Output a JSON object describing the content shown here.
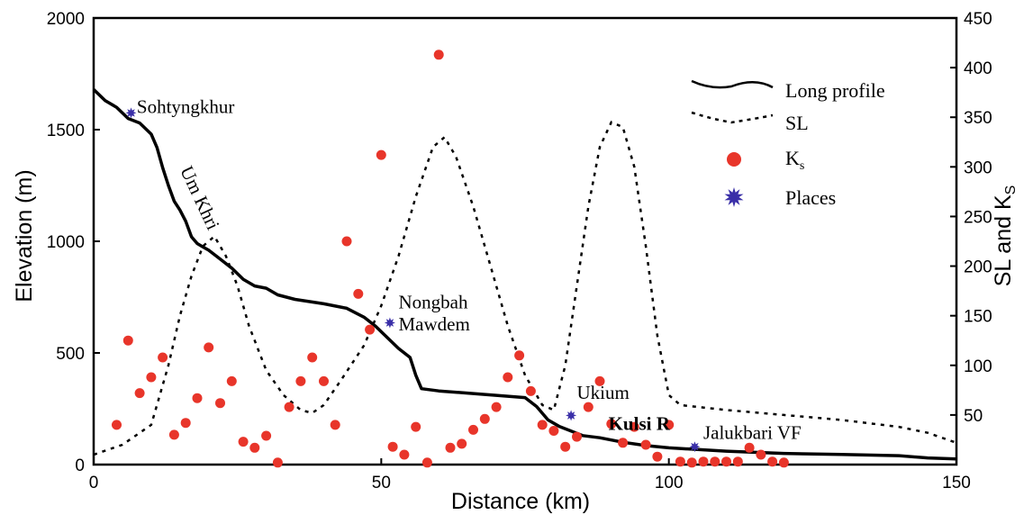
{
  "chart_data": {
    "type": "scatter",
    "xlabel": "Distance (km)",
    "ylabel": "Elevation (m)",
    "y2label": "SL and K",
    "y2label_sub": "S",
    "xlim": [
      0,
      150
    ],
    "ylim": [
      0,
      2000
    ],
    "y2lim": [
      0,
      450
    ],
    "x_ticks": [
      {
        "value": 0,
        "label": "0"
      },
      {
        "value": 50,
        "label": "50"
      },
      {
        "value": 100,
        "label": "100"
      },
      {
        "value": 150,
        "label": "150"
      }
    ],
    "y_ticks": [
      {
        "value": 0,
        "label": "0"
      },
      {
        "value": 500,
        "label": "500"
      },
      {
        "value": 1000,
        "label": "1000"
      },
      {
        "value": 1500,
        "label": "1500"
      },
      {
        "value": 2000,
        "label": "2000"
      }
    ],
    "y2_ticks": [
      {
        "value": 50,
        "label": "50"
      },
      {
        "value": 100,
        "label": "100"
      },
      {
        "value": 150,
        "label": "150"
      },
      {
        "value": 200,
        "label": "200"
      },
      {
        "value": 250,
        "label": "250"
      },
      {
        "value": 300,
        "label": "300"
      },
      {
        "value": 350,
        "label": "350"
      },
      {
        "value": 400,
        "label": "400"
      },
      {
        "value": 450,
        "label": "450"
      }
    ],
    "legend": {
      "placement": "top-right",
      "items": [
        {
          "label": "Long profile",
          "style": "solid-line"
        },
        {
          "label": "SL",
          "style": "dotted-line"
        },
        {
          "label": "K",
          "sub": "s",
          "style": "red-dot"
        },
        {
          "label": "Places",
          "style": "blue-star"
        }
      ]
    },
    "colors": {
      "profile": "#000000",
      "sl": "#000000",
      "ks": "#e8352a",
      "places": "#3a2fa8"
    },
    "series": [
      {
        "name": "Long profile",
        "axis": "left",
        "x": [
          0,
          2,
          4,
          6,
          8,
          10,
          11,
          12,
          13,
          14,
          15,
          16,
          17,
          18,
          19,
          20,
          22,
          24,
          26,
          28,
          30,
          32,
          35,
          40,
          44,
          47,
          49,
          51,
          53,
          55,
          56,
          57,
          60,
          65,
          70,
          75,
          77,
          79,
          81,
          83,
          85,
          88,
          92,
          96,
          100,
          110,
          120,
          130,
          140,
          145,
          150
        ],
        "y": [
          1680,
          1630,
          1600,
          1550,
          1530,
          1480,
          1420,
          1330,
          1250,
          1180,
          1140,
          1090,
          1020,
          990,
          975,
          960,
          920,
          880,
          830,
          800,
          790,
          760,
          740,
          720,
          700,
          660,
          620,
          570,
          520,
          480,
          400,
          340,
          330,
          320,
          310,
          300,
          260,
          200,
          170,
          150,
          130,
          120,
          100,
          85,
          75,
          60,
          50,
          45,
          40,
          30,
          25
        ]
      },
      {
        "name": "SL",
        "axis": "right",
        "x": [
          0,
          5,
          10,
          13,
          15,
          17,
          19,
          21,
          23,
          25,
          27,
          30,
          33,
          36,
          38,
          40,
          43,
          47,
          50,
          53,
          56,
          59,
          61,
          63,
          66,
          69,
          72,
          75,
          78,
          80,
          82,
          84,
          86,
          88,
          90,
          92,
          94,
          96,
          98,
          100,
          102,
          110,
          120,
          130,
          140,
          145,
          150
        ],
        "y": [
          10,
          20,
          40,
          100,
          150,
          190,
          220,
          230,
          210,
          180,
          140,
          95,
          70,
          55,
          52,
          60,
          85,
          120,
          160,
          210,
          270,
          320,
          330,
          310,
          260,
          200,
          140,
          90,
          60,
          55,
          100,
          180,
          260,
          320,
          345,
          340,
          300,
          220,
          130,
          70,
          60,
          55,
          50,
          45,
          38,
          32,
          22
        ]
      },
      {
        "name": "K",
        "axis": "right",
        "x": [
          4,
          6,
          8,
          10,
          12,
          14,
          16,
          18,
          20,
          22,
          24,
          26,
          28,
          30,
          32,
          34,
          36,
          38,
          40,
          42,
          44,
          46,
          48,
          50,
          52,
          54,
          56,
          58,
          60,
          62,
          64,
          66,
          68,
          70,
          72,
          74,
          76,
          78,
          80,
          82,
          84,
          86,
          88,
          90,
          92,
          94,
          96,
          98,
          100,
          102,
          104,
          106,
          108,
          110,
          112,
          114,
          116,
          118,
          120
        ],
        "y": [
          40,
          125,
          72,
          88,
          108,
          30,
          42,
          67,
          118,
          62,
          84,
          23,
          17,
          29,
          2,
          58,
          84,
          108,
          84,
          40,
          225,
          172,
          136,
          312,
          18,
          10,
          38,
          2,
          413,
          17,
          21,
          35,
          46,
          58,
          88,
          110,
          74,
          40,
          34,
          18,
          28,
          58,
          84,
          41,
          22,
          38,
          20,
          8,
          40,
          3,
          2,
          3,
          3,
          3,
          3,
          17,
          10,
          3,
          2
        ]
      },
      {
        "name": "Places",
        "axis": "left",
        "x": [
          6.5,
          51.5,
          83,
          104.5
        ],
        "y": [
          1575,
          635,
          220,
          80
        ]
      }
    ],
    "annotations": [
      {
        "text": "Sohtyngkhur",
        "x": 7.5,
        "y": 1575
      },
      {
        "text": "Um Khri",
        "x": 15,
        "y": 1320,
        "rotate": 65
      },
      {
        "text": "Nongbah",
        "x": 53,
        "y": 700
      },
      {
        "text": "Mawdem",
        "x": 53,
        "y": 600
      },
      {
        "text": "Ukium",
        "x": 84,
        "y": 295
      },
      {
        "text": "Kulsi R",
        "x": 89.5,
        "y": 155,
        "bold": true
      },
      {
        "text": "Jalukbari VF",
        "x": 106,
        "y": 115
      }
    ]
  }
}
